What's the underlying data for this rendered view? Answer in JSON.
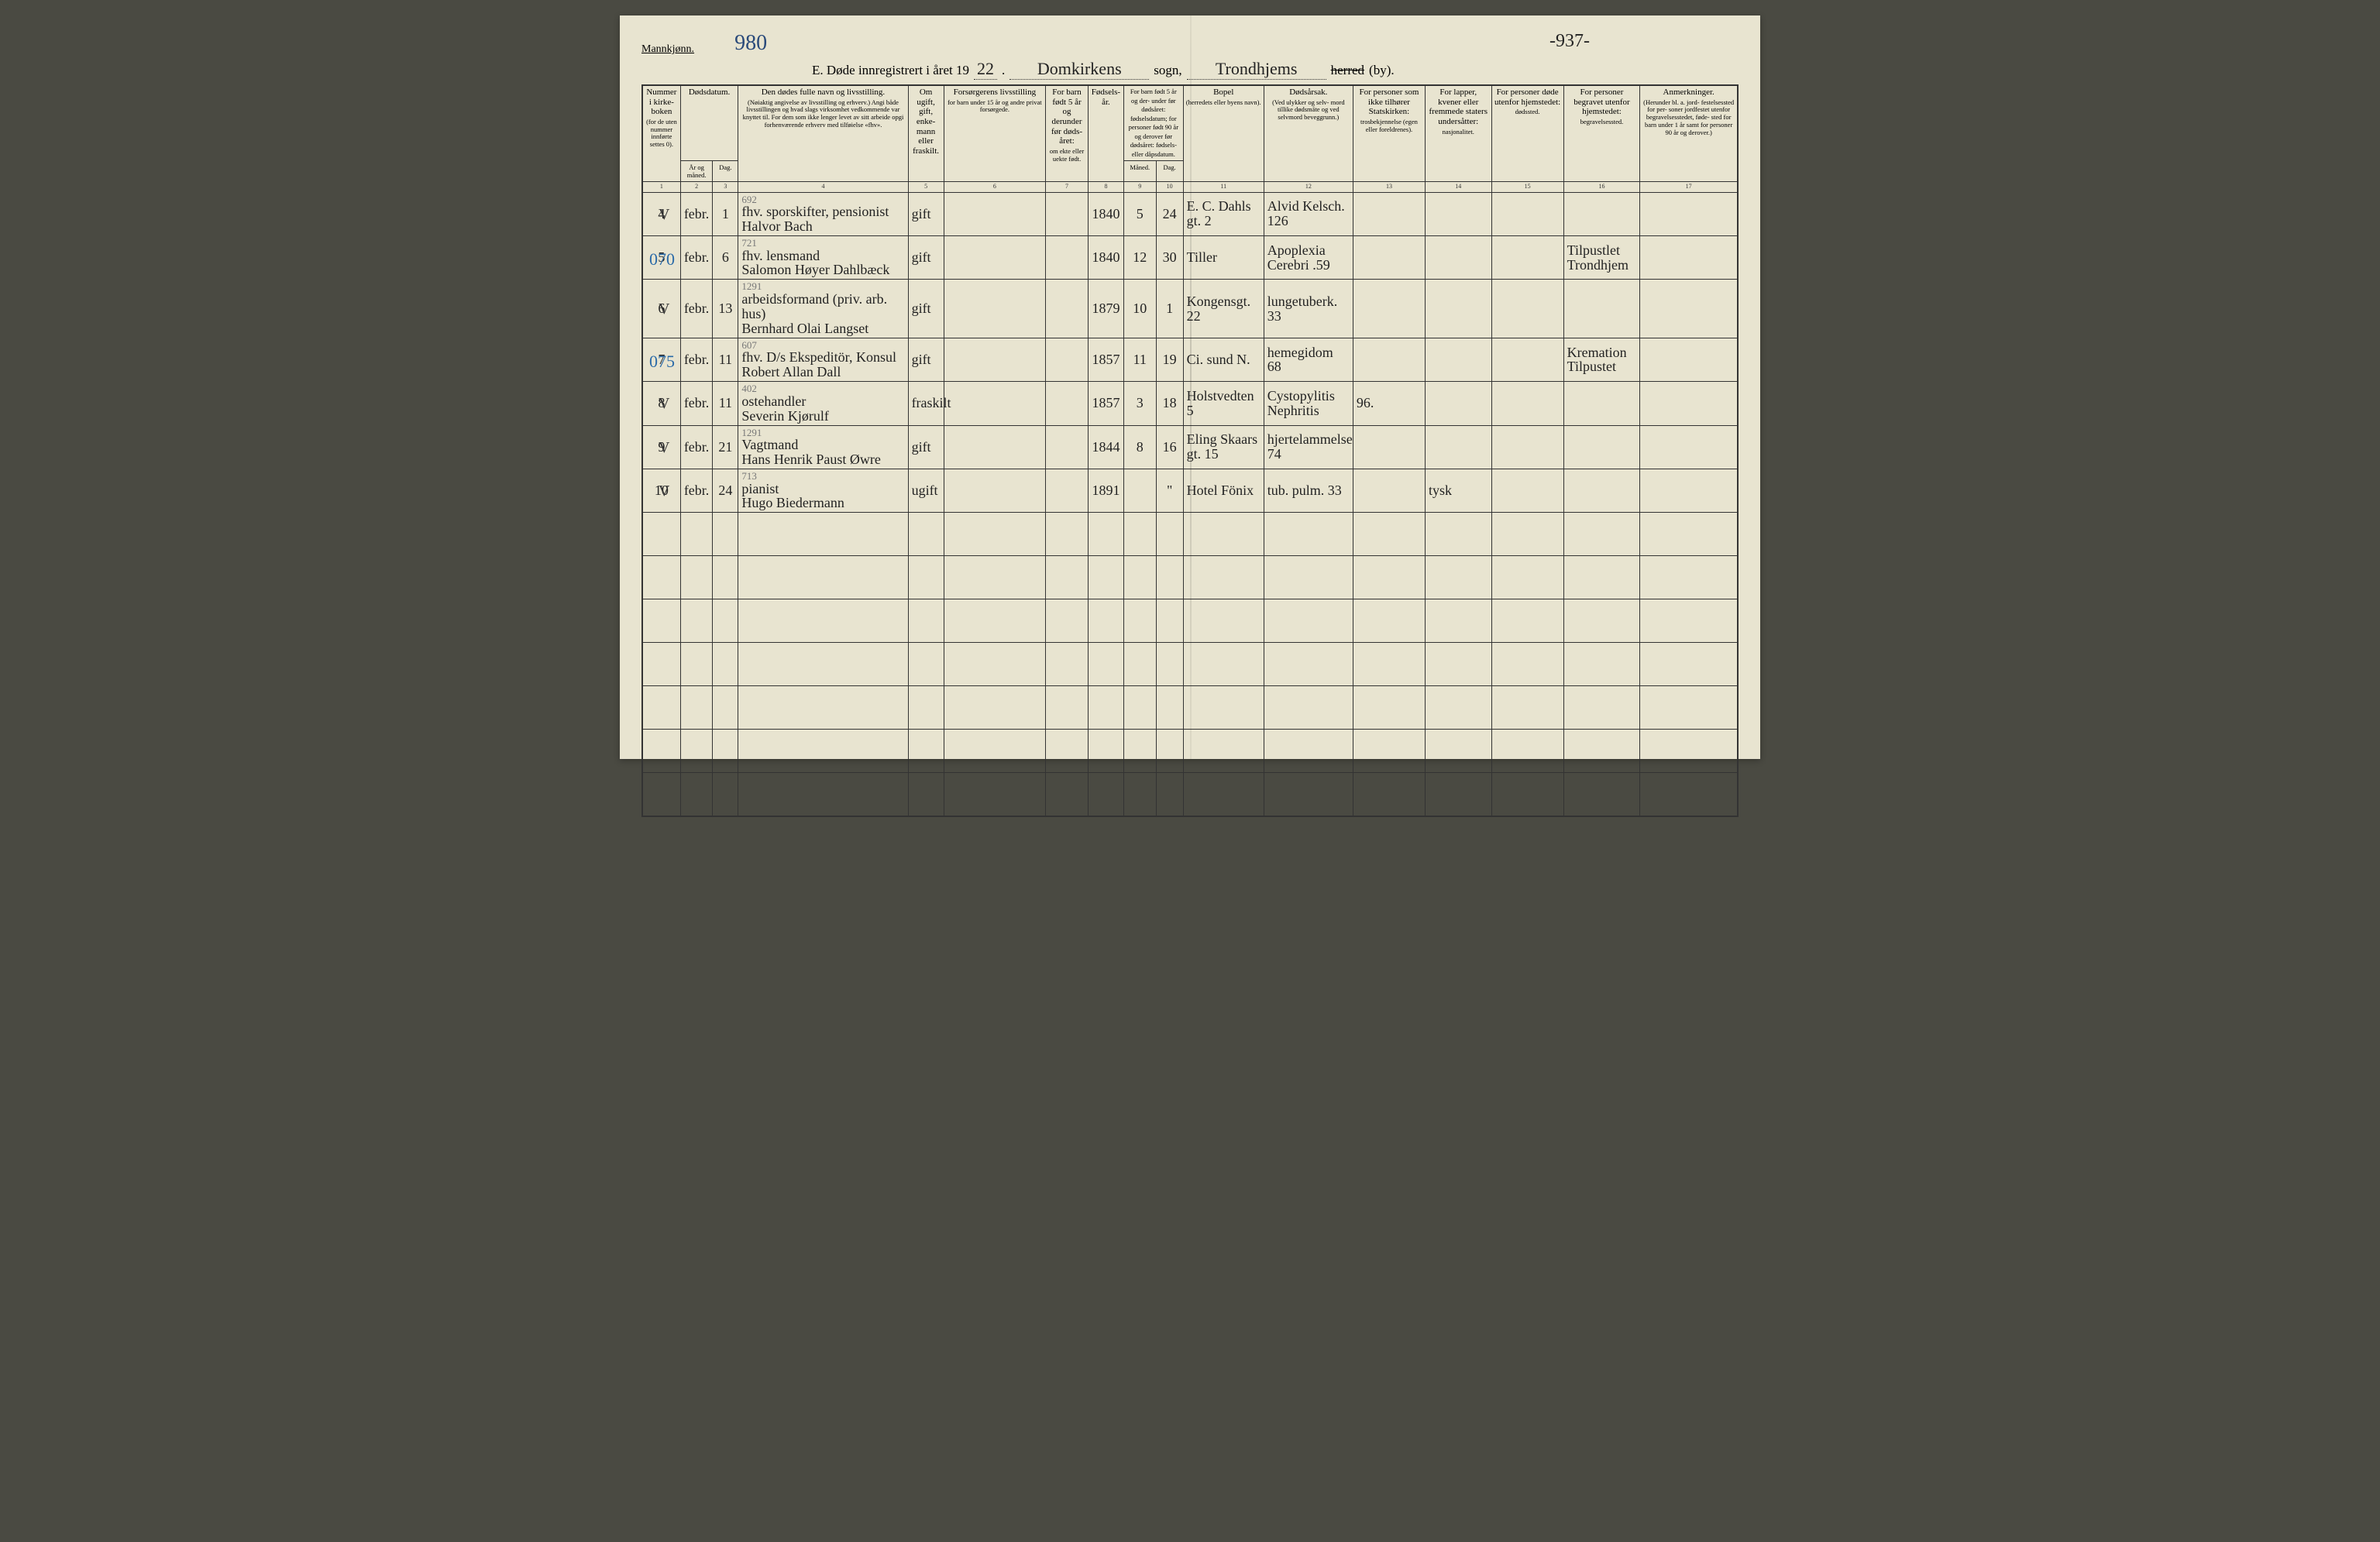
{
  "gender_label": "Mannkjønn.",
  "page_no_left": "980",
  "page_no_right": "-937-",
  "title": {
    "prefix": "E.  Døde innregistrert i året 19",
    "year_suffix": "22",
    "sogn_word": "sogn,",
    "parish_fill": "Domkirkens",
    "district_fill": "Trondhjems",
    "herred_strike": "herred",
    "by_suffix": "(by)."
  },
  "columns": {
    "c1": {
      "title": "Nummer i kirke- boken",
      "sub": "(for de uten nummer innførte settes 0)."
    },
    "c2_3": {
      "title": "Dødsdatum.",
      "sub2": "År og måned.",
      "sub3": "Dag."
    },
    "c4": {
      "title": "Den dødes fulle navn og livsstilling.",
      "sub": "(Nøiaktig angivelse av livsstilling og erhverv.) Angi både livsstillingen og hvad slags virksomhet vedkommende var knyttet til. For dem som ikke lenger levet av sitt arbeide opgi forhenværende erhverv med tilføielse «fhv»."
    },
    "c5": {
      "title": "Om ugift, gift, enke- mann eller fraskilt."
    },
    "c6": {
      "title": "Forsørgerens livsstilling",
      "sub": "for barn under 15 år og andre privat forsørgede."
    },
    "c7": {
      "title": "For barn født 5 år og derunder før døds- året:",
      "sub": "om ekte eller uekte født."
    },
    "c8": {
      "title": "Fødsels- år."
    },
    "c9_10": {
      "title": "For barn født 5 år og der- under før dødsåret: fødselsdatum; for personer født 90 år og derover før dødsåret: fødsels- eller dåpsdatum.",
      "sub9": "Måned.",
      "sub10": "Dag."
    },
    "c11": {
      "title": "Bopel",
      "sub": "(herredets eller byens navn)."
    },
    "c12": {
      "title": "Dødsårsak.",
      "sub": "(Ved ulykker og selv- mord tillike dødsmåte og ved selvmord beveggrunn.)"
    },
    "c13": {
      "title": "For personer som ikke tilhører Statskirken:",
      "sub": "trosbekjennelse (egen eller foreldrenes)."
    },
    "c14": {
      "title": "For lapper, kvener eller fremmede staters undersåtter:",
      "sub": "nasjonalitet."
    },
    "c15": {
      "title": "For personer døde utenfor hjemstedet:",
      "sub": "dødssted."
    },
    "c16": {
      "title": "For personer begravet utenfor hjemstedet:",
      "sub": "begravelsessted."
    },
    "c17": {
      "title": "Anmerkninger.",
      "sub": "(Herunder bl. a. jord- festelsessted for per- soner jordfestet utenfor begravelsesstedet, føde- sted for barn under 1 år samt for personer 90 år og derover.)"
    }
  },
  "colnums": [
    "1",
    "2",
    "3",
    "4",
    "5",
    "6",
    "7",
    "8",
    "9",
    "10",
    "11",
    "12",
    "13",
    "14",
    "15",
    "16",
    "17"
  ],
  "rows": [
    {
      "tick": "V",
      "blue": "",
      "num": "4",
      "month": "febr.",
      "day": "1",
      "name_anno": "692",
      "name": "fhv. sporskifter, pensionist\nHalvor Bach",
      "civil": "gift",
      "guardian": "",
      "ekte": "",
      "birth_year": "1840",
      "bm": "5",
      "bd": "24",
      "bopel": "E. C. Dahls gt. 2",
      "cause": "Alvid Kelsch. 126",
      "c13": "",
      "c14": "",
      "c15": "",
      "c16": "",
      "c17": ""
    },
    {
      "tick": "",
      "blue": "070",
      "num": "5",
      "month": "febr.",
      "day": "6",
      "name_anno": "721",
      "name": "fhv. lensmand\nSalomon Høyer Dahlbæck",
      "civil": "gift",
      "guardian": "",
      "ekte": "",
      "birth_year": "1840",
      "bm": "12",
      "bd": "30",
      "bopel": "Tiller",
      "cause": "Apoplexia Cerebri .59",
      "c13": "",
      "c14": "",
      "c15": "",
      "c16": "Tilpustlet Trondhjem",
      "c17": ""
    },
    {
      "tick": "V",
      "blue": "",
      "num": "6",
      "month": "febr.",
      "day": "13",
      "name_anno": "1291",
      "name": "arbeidsformand (priv. arb. hus)\nBernhard Olai Langset",
      "civil": "gift",
      "guardian": "",
      "ekte": "",
      "birth_year": "1879",
      "bm": "10",
      "bd": "1",
      "bopel": "Kongensgt. 22",
      "cause": "lungetuberk. 33",
      "c13": "",
      "c14": "",
      "c15": "",
      "c16": "",
      "c17": ""
    },
    {
      "tick": "",
      "blue": "075",
      "num": "7",
      "month": "febr.",
      "day": "11",
      "name_anno": "607",
      "name": "fhv. D/s Ekspeditör, Konsul\nRobert Allan Dall",
      "civil": "gift",
      "guardian": "",
      "ekte": "",
      "birth_year": "1857",
      "bm": "11",
      "bd": "19",
      "bopel": "Ci. sund N.",
      "cause": "hemegidom 68",
      "c13": "",
      "c14": "",
      "c15": "",
      "c16": "Kremation Tilpustet",
      "c17": ""
    },
    {
      "tick": "V",
      "blue": "",
      "num": "8",
      "month": "febr.",
      "day": "11",
      "name_anno": "402",
      "name": "ostehandler\nSeverin Kjørulf",
      "civil": "fraskilt",
      "guardian": "",
      "ekte": "",
      "birth_year": "1857",
      "bm": "3",
      "bd": "18",
      "bopel": "Holstvedten 5",
      "cause": "Cystopylitis Nephritis",
      "c13": "96.",
      "c14": "",
      "c15": "",
      "c16": "",
      "c17": ""
    },
    {
      "tick": "V",
      "blue": "",
      "num": "9",
      "month": "febr.",
      "day": "21",
      "name_anno": "1291",
      "name": "Vagtmand\nHans Henrik Paust Øwre",
      "civil": "gift",
      "guardian": "",
      "ekte": "",
      "birth_year": "1844",
      "bm": "8",
      "bd": "16",
      "bopel": "Eling Skaars gt. 15",
      "cause": "hjertelammelse 74",
      "c13": "",
      "c14": "",
      "c15": "",
      "c16": "",
      "c17": ""
    },
    {
      "tick": "V",
      "blue": "",
      "num": "10",
      "month": "febr.",
      "day": "24",
      "name_anno": "713",
      "name": "pianist\nHugo Biedermann",
      "civil": "ugift",
      "guardian": "",
      "ekte": "",
      "birth_year": "1891",
      "bm": "",
      "bd": "\"",
      "bopel": "Hotel Fönix",
      "cause": "tub. pulm. 33",
      "c13": "",
      "c14": "tysk",
      "c15": "",
      "c16": "",
      "c17": ""
    }
  ],
  "empty_row_count": 7
}
